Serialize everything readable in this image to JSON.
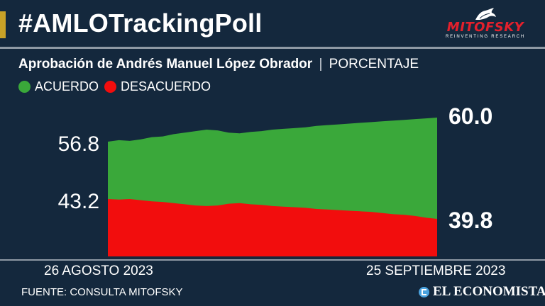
{
  "header": {
    "title": "#AMLOTrackingPoll",
    "accent_color": "#c9a227",
    "logo": {
      "name": "MITOFSKY",
      "tagline": "REINVENTING RESEARCH",
      "color": "#e3202c"
    }
  },
  "subtitle": {
    "main": "Aprobación de Andrés Manuel López Obrador",
    "separator": "|",
    "unit": "PORCENTAJE"
  },
  "legend": [
    {
      "label": "ACUERDO",
      "color": "#3aa83a"
    },
    {
      "label": "DESACUERDO",
      "color": "#f20d0d"
    }
  ],
  "chart_data": {
    "type": "area",
    "title": "Aprobación de Andrés Manuel López Obrador",
    "ylabel": "PORCENTAJE",
    "xlabel": "",
    "x_start_label": "26 AGOSTO 2023",
    "x_end_label": "25 SEPTIEMBRE 2023",
    "x": [
      1,
      2,
      3,
      4,
      5,
      6,
      7,
      8,
      9,
      10,
      11,
      12,
      13,
      14,
      15,
      16,
      17,
      18,
      19,
      20,
      21,
      22,
      23,
      24,
      25,
      26,
      27,
      28,
      29,
      30,
      31
    ],
    "series": [
      {
        "name": "ACUERDO",
        "color": "#3aa83a",
        "values": [
          56.8,
          57.0,
          56.9,
          57.1,
          57.4,
          57.5,
          57.8,
          58.0,
          58.2,
          58.4,
          58.3,
          58.0,
          57.9,
          58.1,
          58.2,
          58.4,
          58.5,
          58.6,
          58.7,
          58.9,
          59.0,
          59.1,
          59.2,
          59.3,
          59.4,
          59.5,
          59.6,
          59.7,
          59.8,
          59.9,
          60.0
        ],
        "start_label": "56.8",
        "end_label": "60.0"
      },
      {
        "name": "DESACUERDO",
        "color": "#f20d0d",
        "values": [
          43.2,
          43.1,
          43.2,
          43.0,
          42.8,
          42.7,
          42.5,
          42.3,
          42.1,
          42.0,
          42.1,
          42.4,
          42.5,
          42.3,
          42.2,
          42.0,
          41.9,
          41.8,
          41.7,
          41.5,
          41.4,
          41.3,
          41.2,
          41.1,
          41.0,
          40.8,
          40.6,
          40.5,
          40.3,
          40.0,
          39.8
        ],
        "start_label": "43.2",
        "end_label": "39.8"
      }
    ],
    "ylim": [
      0,
      100
    ]
  },
  "footer": {
    "source": "FUENTE: CONSULTA MITOFSKY",
    "brand": "EL ECONOMISTA"
  }
}
